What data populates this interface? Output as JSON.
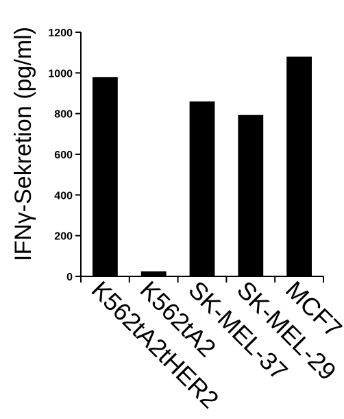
{
  "chart_data": {
    "type": "bar",
    "categories": [
      "K562tA2tHER2",
      "K562tA2",
      "SK-MEL-37",
      "SK-MEL-29",
      "MCF7"
    ],
    "values": [
      980,
      25,
      860,
      793,
      1080
    ],
    "title": "",
    "xlabel": "",
    "ylabel": "IFNγ-Sekretion (pg/ml)",
    "ylim": [
      0,
      1200
    ],
    "yticks": [
      0,
      200,
      400,
      600,
      800,
      1000,
      1200
    ],
    "grid": false,
    "legend": "none",
    "bar_color": "#000000"
  }
}
